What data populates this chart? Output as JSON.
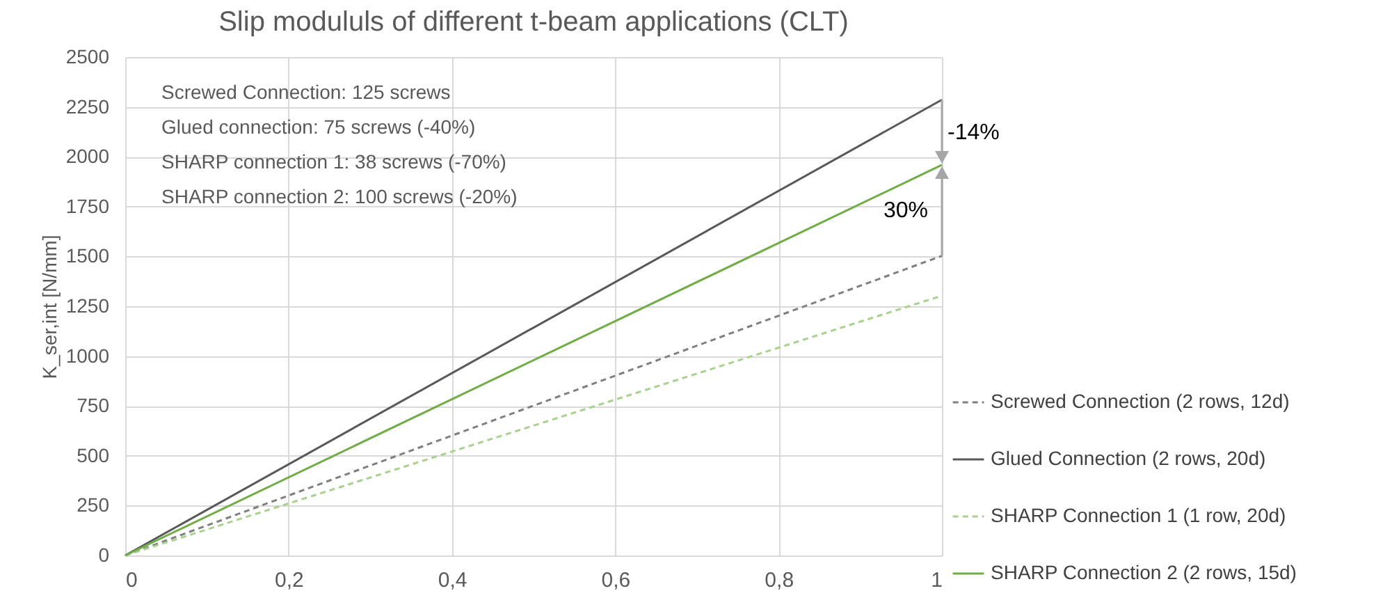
{
  "chart_data": {
    "type": "line",
    "title": "Slip modululs of different t-beam applications (CLT)",
    "ylabel": "K_ser,int [N/mm]",
    "x": [
      0,
      1
    ],
    "series": [
      {
        "name": "Screwed Connection (2 rows, 12d)",
        "color": "#7f7f7f",
        "line_style": "dashed",
        "values": [
          0,
          1503
        ]
      },
      {
        "name": "Glued Connection (2 rows, 20d)",
        "color": "#595959",
        "line_style": "solid",
        "values": [
          0,
          2286
        ]
      },
      {
        "name": "SHARP Connection 1 (1 row, 20d)",
        "color": "#a9d18e",
        "line_style": "dashed",
        "values": [
          0,
          1303
        ]
      },
      {
        "name": "SHARP Connection 2 (2 rows, 15d)",
        "color": "#70ad47",
        "line_style": "solid",
        "values": [
          0,
          1959
        ]
      }
    ],
    "xlim": [
      0,
      1
    ],
    "xticks": [
      0,
      {
        "value": 0.2,
        "label": "0,2"
      },
      {
        "value": 0.4,
        "label": "0,4"
      },
      {
        "value": 0.6,
        "label": "0,6"
      },
      {
        "value": 0.8,
        "label": "0,8"
      },
      1
    ],
    "ylim": [
      0,
      2500
    ],
    "yticks": [
      0,
      250,
      500,
      750,
      1000,
      1250,
      1500,
      1750,
      2000,
      2250,
      2500
    ],
    "grid": true,
    "legend": "right",
    "marker": "none",
    "annotations": [
      "Screwed Connection: 125 screws",
      "Glued connection: 75 screws (-40%)",
      "SHARP connection 1: 38 screws (-70%)",
      "SHARP connection 2: 100 screws (-20%)",
      "-14%",
      "30%"
    ]
  }
}
